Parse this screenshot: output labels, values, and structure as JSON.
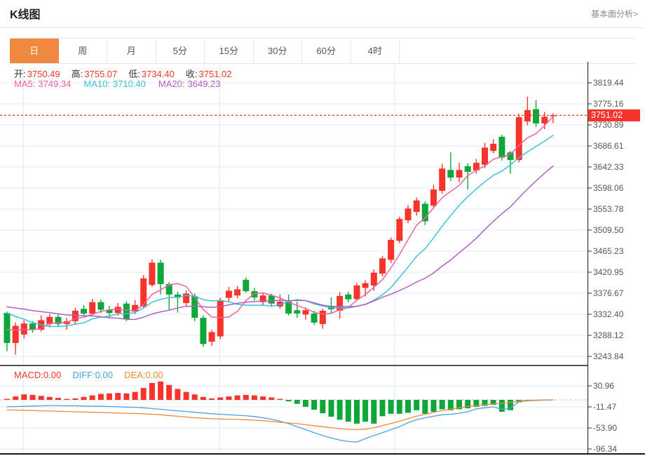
{
  "header": {
    "title": "K线图",
    "analysis_link": "基本面分析>"
  },
  "tabs": {
    "items": [
      "日",
      "周",
      "月",
      "5分",
      "15分",
      "30分",
      "60分",
      "4时"
    ],
    "selected_index": 0
  },
  "quote": {
    "open_label": "开:",
    "open": "3750.49",
    "high_label": "高:",
    "high": "3755.07",
    "low_label": "低:",
    "low": "3734.40",
    "close_label": "收:",
    "close": "3751.02",
    "ma5_label": "MA5:",
    "ma5": "3749.34",
    "ma10_label": "MA10:",
    "ma10": "3710.40",
    "ma20_label": "MA20:",
    "ma20": "3649.23"
  },
  "price_marker": {
    "value": "3751.02"
  },
  "macd_legend": {
    "macd_label": "MACD:",
    "macd": "0.00",
    "diff_label": "DIFF:",
    "diff": "0.00",
    "dea_label": "DEA:",
    "dea": "0.00"
  },
  "colors": {
    "up_red": "#f5352b",
    "down_green": "#0fa73a",
    "ma5_pink": "#f0619d",
    "ma10_cyan": "#3bc2da",
    "ma20_purple": "#af5fc4",
    "diff_blue": "#4ba2e0",
    "dea_orange": "#f08a32",
    "tab_accent": "#f0883f",
    "grid": "#e0e9f1",
    "grid_vertical": "#d9e5ee",
    "axis_line": "#333333",
    "panel_border": "#1a1a1a",
    "zero_dashed": "#abd3ec",
    "label_text": "#555555"
  },
  "chart_data": [
    {
      "type": "candlestick",
      "title": "K线图 (daily K-line with MA overlays)",
      "legend": [
        "MA5",
        "MA10",
        "MA20"
      ],
      "grid": true,
      "legend_position": "top-left",
      "y_axis_labels": [
        "3819.44",
        "3775.16",
        "3730.89",
        "3686.61",
        "3642.33",
        "3598.06",
        "3553.78",
        "3509.50",
        "3465.23",
        "3420.95",
        "3376.67",
        "3332.40",
        "3288.12",
        "3243.84"
      ],
      "ylim": [
        3220,
        3865
      ],
      "last_price": 3751.02,
      "candles_ohlc": [
        [
          3335,
          3338,
          3255,
          3272
        ],
        [
          3272,
          3315,
          3248,
          3308
        ],
        [
          3290,
          3320,
          3282,
          3313
        ],
        [
          3313,
          3318,
          3294,
          3300
        ],
        [
          3300,
          3330,
          3296,
          3320
        ],
        [
          3312,
          3333,
          3305,
          3327
        ],
        [
          3327,
          3332,
          3306,
          3312
        ],
        [
          3312,
          3325,
          3300,
          3318
        ],
        [
          3318,
          3346,
          3312,
          3340
        ],
        [
          3344,
          3352,
          3330,
          3334
        ],
        [
          3334,
          3365,
          3330,
          3358
        ],
        [
          3358,
          3363,
          3335,
          3342
        ],
        [
          3342,
          3350,
          3326,
          3335
        ],
        [
          3335,
          3356,
          3330,
          3348
        ],
        [
          3355,
          3360,
          3318,
          3322
        ],
        [
          3338,
          3362,
          3333,
          3352
        ],
        [
          3349,
          3415,
          3345,
          3408
        ],
        [
          3394,
          3448,
          3390,
          3441
        ],
        [
          3441,
          3447,
          3374,
          3396
        ],
        [
          3396,
          3400,
          3340,
          3374
        ],
        [
          3374,
          3380,
          3336,
          3367
        ],
        [
          3356,
          3383,
          3350,
          3376
        ],
        [
          3370,
          3376,
          3318,
          3325
        ],
        [
          3325,
          3330,
          3264,
          3270
        ],
        [
          3275,
          3300,
          3266,
          3295
        ],
        [
          3286,
          3367,
          3280,
          3362
        ],
        [
          3367,
          3390,
          3360,
          3382
        ],
        [
          3372,
          3392,
          3366,
          3385
        ],
        [
          3405,
          3410,
          3378,
          3381
        ],
        [
          3381,
          3388,
          3362,
          3368
        ],
        [
          3358,
          3378,
          3352,
          3372
        ],
        [
          3372,
          3376,
          3348,
          3355
        ],
        [
          3349,
          3374,
          3344,
          3359
        ],
        [
          3359,
          3374,
          3330,
          3334
        ],
        [
          3341,
          3359,
          3325,
          3334
        ],
        [
          3332,
          3347,
          3321,
          3341
        ],
        [
          3334,
          3340,
          3310,
          3315
        ],
        [
          3312,
          3344,
          3302,
          3340
        ],
        [
          3350,
          3368,
          3336,
          3343
        ],
        [
          3340,
          3379,
          3323,
          3371
        ],
        [
          3374,
          3380,
          3358,
          3364
        ],
        [
          3364,
          3398,
          3360,
          3393
        ],
        [
          3388,
          3404,
          3370,
          3398
        ],
        [
          3393,
          3427,
          3382,
          3420
        ],
        [
          3418,
          3455,
          3412,
          3450
        ],
        [
          3447,
          3494,
          3440,
          3489
        ],
        [
          3487,
          3538,
          3482,
          3533
        ],
        [
          3530,
          3562,
          3524,
          3555
        ],
        [
          3548,
          3578,
          3540,
          3572
        ],
        [
          3565,
          3570,
          3520,
          3528
        ],
        [
          3561,
          3605,
          3555,
          3595
        ],
        [
          3592,
          3649,
          3586,
          3639
        ],
        [
          3636,
          3673,
          3613,
          3620
        ],
        [
          3620,
          3651,
          3610,
          3636
        ],
        [
          3644,
          3650,
          3595,
          3632
        ],
        [
          3635,
          3659,
          3628,
          3651
        ],
        [
          3647,
          3693,
          3640,
          3683
        ],
        [
          3676,
          3701,
          3671,
          3691
        ],
        [
          3706,
          3710,
          3656,
          3662
        ],
        [
          3673,
          3676,
          3628,
          3657
        ],
        [
          3657,
          3754,
          3652,
          3747
        ],
        [
          3738,
          3790,
          3730,
          3762
        ],
        [
          3764,
          3783,
          3727,
          3734
        ],
        [
          3734,
          3758,
          3722,
          3748
        ],
        [
          3750.49,
          3755.07,
          3734.4,
          3751.02
        ]
      ],
      "ma_lead_in_closes": [
        3355,
        3358,
        3362,
        3366,
        3368,
        3365,
        3362,
        3360,
        3357,
        3357,
        3378,
        3374,
        3370,
        3366,
        3362,
        3310,
        3307,
        3305,
        3306
      ],
      "ma_windows": [
        5,
        10,
        20
      ],
      "ma_latest": {
        "MA5": 3749.34,
        "MA10": 3710.4,
        "MA20": 3649.23
      }
    },
    {
      "type": "bar+line",
      "title": "MACD (12,26,9)",
      "legend": [
        "MACD",
        "DIFF",
        "DEA"
      ],
      "grid": true,
      "y_axis_labels": [
        "30.96",
        "-11.47",
        "-53.90",
        "-96.34"
      ],
      "ylim": [
        -110,
        55
      ],
      "histogram": [
        2,
        7,
        11,
        10,
        8,
        6,
        4,
        2,
        3,
        6,
        9,
        12,
        13,
        14,
        13,
        16,
        24,
        34,
        37,
        30,
        22,
        16,
        11,
        6,
        3,
        5,
        7,
        9,
        10,
        9,
        7,
        5,
        2,
        -3,
        -8,
        -14,
        -20,
        -27,
        -34,
        -40,
        -44,
        -48,
        -44,
        -48,
        -33,
        -28,
        -28,
        -26,
        -21,
        -28,
        -24,
        -19,
        -21,
        -19,
        -17,
        -14,
        -12,
        -10,
        -24,
        -21,
        -5,
        -1,
        -2,
        0,
        0
      ],
      "diff": [
        -14,
        -13.5,
        -13,
        -12.5,
        -12,
        -11.5,
        -11.5,
        -12,
        -12,
        -12.5,
        -13,
        -13,
        -13.5,
        -14,
        -14.5,
        -15,
        -16,
        -17.5,
        -19,
        -20.5,
        -22,
        -23.5,
        -25,
        -26.5,
        -28,
        -29,
        -30,
        -31,
        -32,
        -33.5,
        -36,
        -39,
        -43,
        -48,
        -54,
        -60,
        -66,
        -72,
        -77,
        -81,
        -84,
        -85,
        -78,
        -72,
        -66,
        -60,
        -54,
        -46,
        -40,
        -36,
        -33,
        -30,
        -29,
        -27,
        -24,
        -18,
        -16,
        -14,
        -19,
        -17,
        -4,
        -2,
        -1,
        -0.5,
        0
      ],
      "dea": [
        -20,
        -20.5,
        -21,
        -21.5,
        -22,
        -22.5,
        -23,
        -23.5,
        -24,
        -24.5,
        -25,
        -25.5,
        -26,
        -26.5,
        -27,
        -27.5,
        -28,
        -29,
        -30,
        -31.5,
        -33,
        -34.5,
        -36,
        -37,
        -38,
        -38.5,
        -39,
        -39.5,
        -40,
        -41,
        -42,
        -43.5,
        -45,
        -46.5,
        -48,
        -50,
        -52,
        -54,
        -56,
        -58,
        -59.5,
        -60,
        -59,
        -56,
        -52,
        -47.5,
        -43,
        -38,
        -33,
        -29,
        -25,
        -21.5,
        -18.5,
        -16,
        -13.5,
        -11.5,
        -9.5,
        -8,
        -6.5,
        -5,
        -2.5,
        -1,
        -0.5,
        0,
        0
      ],
      "latest": {
        "MACD": 0.0,
        "DIFF": 0.0,
        "DEA": 0.0
      }
    }
  ]
}
